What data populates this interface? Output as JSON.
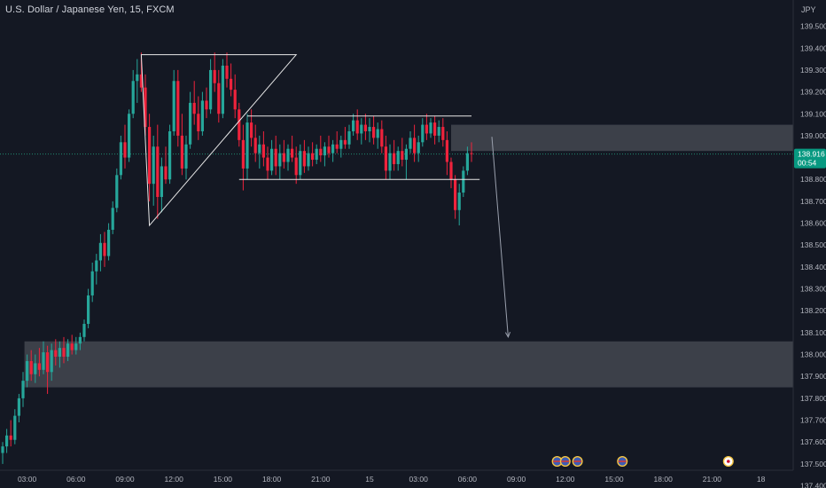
{
  "header": {
    "title": "U.S. Dollar / Japanese Yen, 15, FXCM"
  },
  "price_axis": {
    "currency_label": "JPY"
  },
  "last_price": {
    "value": "138.916",
    "countdown": "00:54"
  },
  "colors": {
    "background": "#141823",
    "bull": "#26a69a",
    "bear": "#ef233c",
    "text": "#b2b5be",
    "drawing": "#e8e8e8",
    "zone": "#4a4d57",
    "price_line": "#1f8a70",
    "price_tag": "#089981"
  },
  "chart_data": {
    "type": "candlestick",
    "title": "U.S. Dollar / Japanese Yen, 15, FXCM",
    "ylabel": "JPY",
    "ylim": [
      137.39,
      139.62
    ],
    "y_ticks": [
      139.5,
      139.4,
      139.3,
      139.2,
      139.1,
      139.0,
      138.9,
      138.8,
      138.7,
      138.6,
      138.5,
      138.4,
      138.3,
      138.2,
      138.1,
      138.0,
      137.9,
      137.8,
      137.7,
      137.6,
      137.5,
      137.4
    ],
    "y_tick_labels": [
      "139.500",
      "139.400",
      "139.300",
      "139.200",
      "139.100",
      "139.000",
      "138.900",
      "138.800",
      "138.700",
      "138.600",
      "138.500",
      "138.400",
      "138.300",
      "138.200",
      "138.100",
      "138.000",
      "137.900",
      "137.800",
      "137.700",
      "137.600",
      "137.500",
      "137.400"
    ],
    "x_ticks": [
      {
        "bar": 6,
        "label": "03:00"
      },
      {
        "bar": 18,
        "label": "06:00"
      },
      {
        "bar": 30,
        "label": "09:00"
      },
      {
        "bar": 42,
        "label": "12:00"
      },
      {
        "bar": 54,
        "label": "15:00"
      },
      {
        "bar": 66,
        "label": "18:00"
      },
      {
        "bar": 78,
        "label": "21:00"
      },
      {
        "bar": 90,
        "label": "15"
      },
      {
        "bar": 102,
        "label": "03:00"
      },
      {
        "bar": 114,
        "label": "06:00"
      },
      {
        "bar": 126,
        "label": "09:00"
      },
      {
        "bar": 138,
        "label": "12:00"
      },
      {
        "bar": 150,
        "label": "15:00"
      },
      {
        "bar": 162,
        "label": "18:00"
      },
      {
        "bar": 174,
        "label": "21:00"
      },
      {
        "bar": 186,
        "label": "18"
      }
    ],
    "bar_count_total": 196,
    "last_price": 138.916,
    "candles": [
      {
        "o": 137.55,
        "h": 137.6,
        "l": 137.5,
        "c": 137.58
      },
      {
        "o": 137.58,
        "h": 137.66,
        "l": 137.55,
        "c": 137.63
      },
      {
        "o": 137.63,
        "h": 137.7,
        "l": 137.58,
        "c": 137.61
      },
      {
        "o": 137.61,
        "h": 137.75,
        "l": 137.59,
        "c": 137.72
      },
      {
        "o": 137.72,
        "h": 137.82,
        "l": 137.69,
        "c": 137.8
      },
      {
        "o": 137.8,
        "h": 137.92,
        "l": 137.76,
        "c": 137.88
      },
      {
        "o": 137.88,
        "h": 138.0,
        "l": 137.85,
        "c": 137.97
      },
      {
        "o": 137.97,
        "h": 138.02,
        "l": 137.88,
        "c": 137.91
      },
      {
        "o": 137.91,
        "h": 138.0,
        "l": 137.87,
        "c": 137.96
      },
      {
        "o": 137.96,
        "h": 138.03,
        "l": 137.9,
        "c": 137.93
      },
      {
        "o": 137.93,
        "h": 138.06,
        "l": 137.91,
        "c": 138.01
      },
      {
        "o": 138.01,
        "h": 138.04,
        "l": 137.82,
        "c": 137.92
      },
      {
        "o": 137.92,
        "h": 138.05,
        "l": 137.88,
        "c": 138.02
      },
      {
        "o": 138.02,
        "h": 138.07,
        "l": 137.95,
        "c": 137.99
      },
      {
        "o": 137.99,
        "h": 138.06,
        "l": 137.94,
        "c": 138.03
      },
      {
        "o": 138.03,
        "h": 138.08,
        "l": 137.96,
        "c": 137.99
      },
      {
        "o": 137.99,
        "h": 138.07,
        "l": 137.97,
        "c": 138.05
      },
      {
        "o": 138.05,
        "h": 138.09,
        "l": 138.0,
        "c": 138.02
      },
      {
        "o": 138.02,
        "h": 138.08,
        "l": 138.0,
        "c": 138.05
      },
      {
        "o": 138.05,
        "h": 138.1,
        "l": 138.02,
        "c": 138.08
      },
      {
        "o": 138.08,
        "h": 138.16,
        "l": 138.06,
        "c": 138.14
      },
      {
        "o": 138.14,
        "h": 138.3,
        "l": 138.12,
        "c": 138.27
      },
      {
        "o": 138.27,
        "h": 138.42,
        "l": 138.24,
        "c": 138.38
      },
      {
        "o": 138.38,
        "h": 138.46,
        "l": 138.32,
        "c": 138.43
      },
      {
        "o": 138.43,
        "h": 138.55,
        "l": 138.38,
        "c": 138.51
      },
      {
        "o": 138.51,
        "h": 138.56,
        "l": 138.4,
        "c": 138.45
      },
      {
        "o": 138.45,
        "h": 138.6,
        "l": 138.43,
        "c": 138.57
      },
      {
        "o": 138.57,
        "h": 138.7,
        "l": 138.55,
        "c": 138.67
      },
      {
        "o": 138.67,
        "h": 138.85,
        "l": 138.65,
        "c": 138.82
      },
      {
        "o": 138.82,
        "h": 139.0,
        "l": 138.8,
        "c": 138.97
      },
      {
        "o": 138.97,
        "h": 139.05,
        "l": 138.85,
        "c": 138.9
      },
      {
        "o": 138.9,
        "h": 139.12,
        "l": 138.88,
        "c": 139.1
      },
      {
        "o": 139.1,
        "h": 139.3,
        "l": 139.08,
        "c": 139.25
      },
      {
        "o": 139.25,
        "h": 139.35,
        "l": 139.15,
        "c": 139.28
      },
      {
        "o": 139.28,
        "h": 139.38,
        "l": 139.2,
        "c": 139.22
      },
      {
        "o": 139.22,
        "h": 139.28,
        "l": 139.0,
        "c": 139.04
      },
      {
        "o": 139.04,
        "h": 139.1,
        "l": 138.7,
        "c": 138.78
      },
      {
        "o": 138.78,
        "h": 139.0,
        "l": 138.68,
        "c": 138.95
      },
      {
        "o": 138.95,
        "h": 139.05,
        "l": 138.62,
        "c": 138.72
      },
      {
        "o": 138.72,
        "h": 138.9,
        "l": 138.65,
        "c": 138.86
      },
      {
        "o": 138.86,
        "h": 138.95,
        "l": 138.78,
        "c": 138.8
      },
      {
        "o": 138.8,
        "h": 139.05,
        "l": 138.78,
        "c": 139.02
      },
      {
        "o": 139.02,
        "h": 139.3,
        "l": 139.0,
        "c": 139.25
      },
      {
        "o": 139.25,
        "h": 139.3,
        "l": 138.95,
        "c": 139.0
      },
      {
        "o": 139.0,
        "h": 139.1,
        "l": 138.82,
        "c": 138.85
      },
      {
        "o": 138.85,
        "h": 139.0,
        "l": 138.8,
        "c": 138.96
      },
      {
        "o": 138.96,
        "h": 139.2,
        "l": 138.94,
        "c": 139.15
      },
      {
        "o": 139.15,
        "h": 139.25,
        "l": 139.05,
        "c": 139.1
      },
      {
        "o": 139.1,
        "h": 139.18,
        "l": 138.98,
        "c": 139.02
      },
      {
        "o": 139.02,
        "h": 139.2,
        "l": 139.0,
        "c": 139.16
      },
      {
        "o": 139.16,
        "h": 139.22,
        "l": 139.08,
        "c": 139.12
      },
      {
        "o": 139.12,
        "h": 139.35,
        "l": 139.1,
        "c": 139.3
      },
      {
        "o": 139.3,
        "h": 139.38,
        "l": 139.2,
        "c": 139.24
      },
      {
        "o": 139.24,
        "h": 139.3,
        "l": 139.06,
        "c": 139.1
      },
      {
        "o": 139.1,
        "h": 139.35,
        "l": 139.08,
        "c": 139.32
      },
      {
        "o": 139.32,
        "h": 139.38,
        "l": 139.22,
        "c": 139.26
      },
      {
        "o": 139.26,
        "h": 139.33,
        "l": 139.18,
        "c": 139.21
      },
      {
        "o": 139.21,
        "h": 139.28,
        "l": 139.08,
        "c": 139.12
      },
      {
        "o": 139.12,
        "h": 139.15,
        "l": 138.95,
        "c": 138.98
      },
      {
        "o": 138.98,
        "h": 139.05,
        "l": 138.75,
        "c": 138.85
      },
      {
        "o": 138.85,
        "h": 139.1,
        "l": 138.8,
        "c": 139.06
      },
      {
        "o": 139.06,
        "h": 139.12,
        "l": 138.95,
        "c": 138.99
      },
      {
        "o": 138.99,
        "h": 139.05,
        "l": 138.88,
        "c": 138.92
      },
      {
        "o": 138.92,
        "h": 139.0,
        "l": 138.85,
        "c": 138.96
      },
      {
        "o": 138.96,
        "h": 139.02,
        "l": 138.86,
        "c": 138.9
      },
      {
        "o": 138.9,
        "h": 138.95,
        "l": 138.8,
        "c": 138.84
      },
      {
        "o": 138.84,
        "h": 138.98,
        "l": 138.82,
        "c": 138.94
      },
      {
        "o": 138.94,
        "h": 139.0,
        "l": 138.82,
        "c": 138.86
      },
      {
        "o": 138.86,
        "h": 138.96,
        "l": 138.8,
        "c": 138.92
      },
      {
        "o": 138.92,
        "h": 138.98,
        "l": 138.85,
        "c": 138.88
      },
      {
        "o": 138.88,
        "h": 138.96,
        "l": 138.84,
        "c": 138.94
      },
      {
        "o": 138.94,
        "h": 139.0,
        "l": 138.88,
        "c": 138.9
      },
      {
        "o": 138.9,
        "h": 138.95,
        "l": 138.78,
        "c": 138.82
      },
      {
        "o": 138.82,
        "h": 138.96,
        "l": 138.8,
        "c": 138.93
      },
      {
        "o": 138.93,
        "h": 138.98,
        "l": 138.83,
        "c": 138.86
      },
      {
        "o": 138.86,
        "h": 138.95,
        "l": 138.84,
        "c": 138.92
      },
      {
        "o": 138.92,
        "h": 138.97,
        "l": 138.86,
        "c": 138.89
      },
      {
        "o": 138.89,
        "h": 138.96,
        "l": 138.87,
        "c": 138.94
      },
      {
        "o": 138.94,
        "h": 139.0,
        "l": 138.88,
        "c": 138.91
      },
      {
        "o": 138.91,
        "h": 138.97,
        "l": 138.86,
        "c": 138.95
      },
      {
        "o": 138.95,
        "h": 139.0,
        "l": 138.9,
        "c": 138.92
      },
      {
        "o": 138.92,
        "h": 138.98,
        "l": 138.88,
        "c": 138.96
      },
      {
        "o": 138.96,
        "h": 139.02,
        "l": 138.92,
        "c": 138.94
      },
      {
        "o": 138.94,
        "h": 139.0,
        "l": 138.9,
        "c": 138.98
      },
      {
        "o": 138.98,
        "h": 139.04,
        "l": 138.94,
        "c": 138.96
      },
      {
        "o": 138.96,
        "h": 139.05,
        "l": 138.94,
        "c": 139.02
      },
      {
        "o": 139.02,
        "h": 139.1,
        "l": 139.0,
        "c": 139.07
      },
      {
        "o": 139.07,
        "h": 139.12,
        "l": 138.98,
        "c": 139.01
      },
      {
        "o": 139.01,
        "h": 139.08,
        "l": 138.96,
        "c": 139.05
      },
      {
        "o": 139.05,
        "h": 139.1,
        "l": 138.98,
        "c": 139.02
      },
      {
        "o": 139.02,
        "h": 139.08,
        "l": 138.97,
        "c": 139.04
      },
      {
        "o": 139.04,
        "h": 139.09,
        "l": 138.96,
        "c": 138.99
      },
      {
        "o": 138.99,
        "h": 139.06,
        "l": 138.94,
        "c": 139.03
      },
      {
        "o": 139.03,
        "h": 139.07,
        "l": 138.92,
        "c": 138.95
      },
      {
        "o": 138.95,
        "h": 139.0,
        "l": 138.8,
        "c": 138.84
      },
      {
        "o": 138.84,
        "h": 138.96,
        "l": 138.8,
        "c": 138.92
      },
      {
        "o": 138.92,
        "h": 138.98,
        "l": 138.84,
        "c": 138.87
      },
      {
        "o": 138.87,
        "h": 138.95,
        "l": 138.84,
        "c": 138.93
      },
      {
        "o": 138.93,
        "h": 138.99,
        "l": 138.86,
        "c": 138.89
      },
      {
        "o": 138.89,
        "h": 138.96,
        "l": 138.8,
        "c": 138.94
      },
      {
        "o": 138.94,
        "h": 139.02,
        "l": 138.92,
        "c": 138.99
      },
      {
        "o": 138.99,
        "h": 139.05,
        "l": 138.88,
        "c": 138.92
      },
      {
        "o": 138.92,
        "h": 139.0,
        "l": 138.88,
        "c": 138.97
      },
      {
        "o": 138.97,
        "h": 139.08,
        "l": 138.95,
        "c": 139.05
      },
      {
        "o": 139.05,
        "h": 139.1,
        "l": 138.98,
        "c": 139.01
      },
      {
        "o": 139.01,
        "h": 139.08,
        "l": 138.99,
        "c": 139.06
      },
      {
        "o": 139.06,
        "h": 139.09,
        "l": 138.96,
        "c": 139.0
      },
      {
        "o": 139.0,
        "h": 139.07,
        "l": 138.97,
        "c": 139.04
      },
      {
        "o": 139.04,
        "h": 139.08,
        "l": 138.95,
        "c": 138.98
      },
      {
        "o": 138.98,
        "h": 139.02,
        "l": 138.82,
        "c": 138.88
      },
      {
        "o": 138.88,
        "h": 138.9,
        "l": 138.76,
        "c": 138.8
      },
      {
        "o": 138.8,
        "h": 138.82,
        "l": 138.62,
        "c": 138.66
      },
      {
        "o": 138.66,
        "h": 138.78,
        "l": 138.59,
        "c": 138.74
      },
      {
        "o": 138.74,
        "h": 138.86,
        "l": 138.72,
        "c": 138.84
      },
      {
        "o": 138.84,
        "h": 138.95,
        "l": 138.82,
        "c": 138.92
      },
      {
        "o": 138.92,
        "h": 138.97,
        "l": 138.88,
        "c": 138.916
      }
    ],
    "drawings": {
      "triangle": [
        {
          "bar": 34,
          "price": 139.37
        },
        {
          "bar": 72,
          "price": 139.37
        },
        {
          "bar": 36,
          "price": 138.59
        }
      ],
      "range_top": {
        "from_bar": 60,
        "to_bar": 115,
        "price": 139.09
      },
      "range_bottom": {
        "from_bar": 58,
        "to_bar": 117,
        "price": 138.8
      },
      "resistance_zone": {
        "from_bar": 110,
        "to_bar": 196,
        "price_top": 139.05,
        "price_bottom": 138.93
      },
      "target_zone": {
        "from_bar": 6,
        "to_bar": 196,
        "price_top": 138.06,
        "price_bottom": 137.85
      },
      "projection": [
        {
          "bar": 120,
          "price": 138.995
        },
        {
          "bar": 124,
          "price": 138.08
        }
      ]
    },
    "bar_offset": 0
  },
  "event_markers": [
    {
      "bar": 136,
      "name": "us-flag-event-icon"
    },
    {
      "bar": 138,
      "name": "us-flag-event-icon"
    },
    {
      "bar": 141,
      "name": "us-flag-event-icon"
    },
    {
      "bar": 152,
      "name": "us-flag-event-icon"
    },
    {
      "bar": 178,
      "name": "jp-flag-event-icon"
    }
  ]
}
